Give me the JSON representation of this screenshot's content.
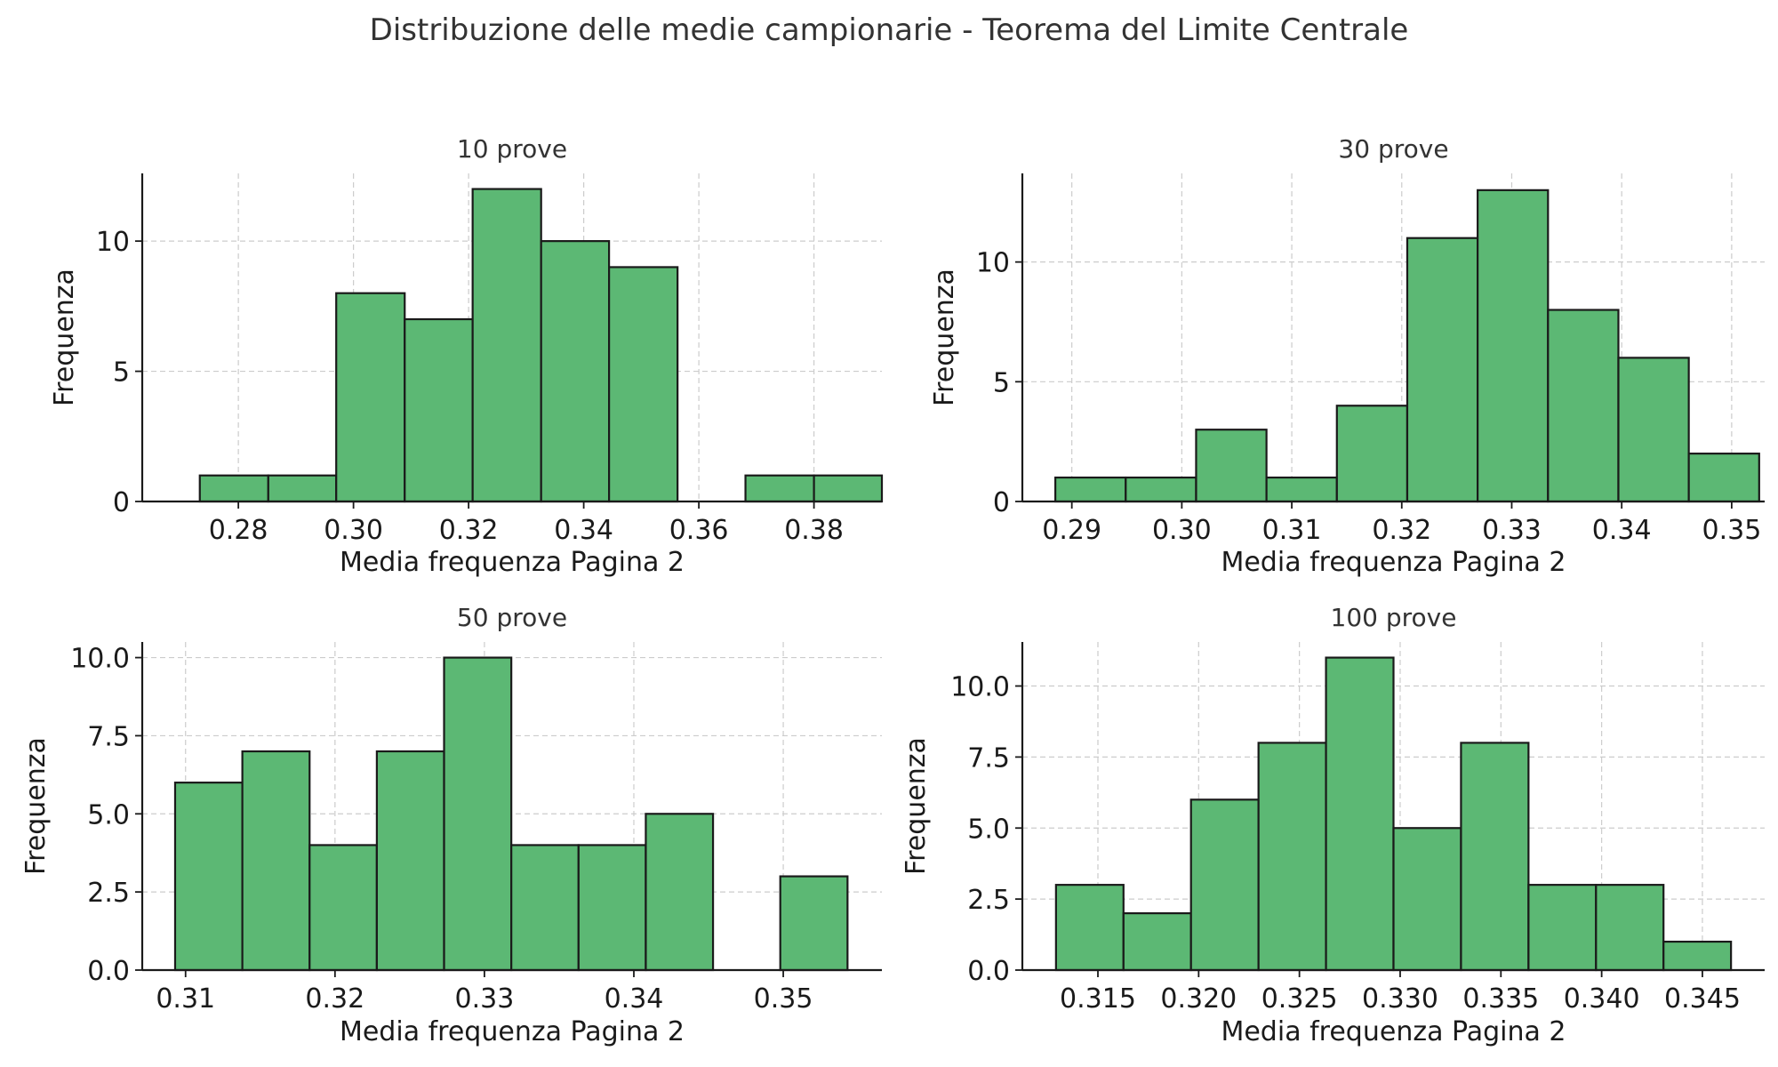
{
  "title": "Distribuzione delle medie campionarie - Teorema del Limite Centrale",
  "colors": {
    "bar_fill": "#5cb874",
    "bar_edge": "#1a1a1a",
    "grid": "#cccccc"
  },
  "chart_data": [
    {
      "type": "bar",
      "title": "10 prove",
      "xlabel": "Media frequenza Pagina 2",
      "ylabel": "Frequenza",
      "grid": true,
      "bin_edges": [
        0.2733,
        0.2852,
        0.297,
        0.3089,
        0.3207,
        0.3326,
        0.3444,
        0.3563,
        0.3681,
        0.38,
        0.3918
      ],
      "values": [
        1,
        1,
        8,
        7,
        12,
        10,
        9,
        0,
        1,
        1
      ],
      "xlim": [
        0.2633,
        0.3918
      ],
      "ylim": [
        0,
        12.6
      ],
      "xticks": [
        0.28,
        0.3,
        0.32,
        0.34,
        0.36,
        0.38
      ],
      "xtick_labels": [
        "0.28",
        "0.30",
        "0.32",
        "0.34",
        "0.36",
        "0.38"
      ],
      "yticks": [
        0,
        5,
        10
      ],
      "ytick_labels": [
        "0",
        "5",
        "10"
      ]
    },
    {
      "type": "bar",
      "title": "30 prove",
      "xlabel": "Media frequenza Pagina 2",
      "ylabel": "Frequenza",
      "grid": true,
      "bin_edges": [
        0.2885,
        0.2949,
        0.3013,
        0.3077,
        0.3141,
        0.3205,
        0.3269,
        0.3333,
        0.3397,
        0.3461,
        0.3525
      ],
      "values": [
        1,
        1,
        3,
        1,
        4,
        11,
        13,
        8,
        6,
        2
      ],
      "xlim": [
        0.2855,
        0.353
      ],
      "ylim": [
        0,
        13.7
      ],
      "xticks": [
        0.29,
        0.3,
        0.31,
        0.32,
        0.33,
        0.34,
        0.35
      ],
      "xtick_labels": [
        "0.29",
        "0.30",
        "0.31",
        "0.32",
        "0.33",
        "0.34",
        "0.35"
      ],
      "yticks": [
        0,
        5,
        10
      ],
      "ytick_labels": [
        "0",
        "5",
        "10"
      ]
    },
    {
      "type": "bar",
      "title": "50 prove",
      "xlabel": "Media frequenza Pagina 2",
      "ylabel": "Frequenza",
      "grid": true,
      "bin_edges": [
        0.3093,
        0.3138,
        0.3183,
        0.3228,
        0.3273,
        0.3318,
        0.3363,
        0.3408,
        0.3453,
        0.3498,
        0.3543
      ],
      "values": [
        6,
        7,
        4,
        7,
        10,
        4,
        4,
        5,
        0,
        3
      ],
      "xlim": [
        0.3071,
        0.3566
      ],
      "ylim": [
        0,
        10.5
      ],
      "xticks": [
        0.31,
        0.32,
        0.33,
        0.34,
        0.35
      ],
      "xtick_labels": [
        "0.31",
        "0.32",
        "0.33",
        "0.34",
        "0.35"
      ],
      "yticks": [
        0.0,
        2.5,
        5.0,
        7.5,
        10.0
      ],
      "ytick_labels": [
        "0.0",
        "2.5",
        "5.0",
        "7.5",
        "10.0"
      ]
    },
    {
      "type": "bar",
      "title": "100 prove",
      "xlabel": "Media frequenza Pagina 2",
      "ylabel": "Frequenza",
      "grid": true,
      "bin_edges": [
        0.31292,
        0.31627,
        0.31962,
        0.32297,
        0.32632,
        0.32967,
        0.33302,
        0.33637,
        0.33972,
        0.34307,
        0.34642
      ],
      "values": [
        3,
        2,
        6,
        8,
        11,
        5,
        8,
        3,
        3,
        1
      ],
      "xlim": [
        0.31125,
        0.34809
      ],
      "ylim": [
        0,
        11.55
      ],
      "xticks": [
        0.315,
        0.32,
        0.325,
        0.33,
        0.335,
        0.34,
        0.345
      ],
      "xtick_labels": [
        "0.315",
        "0.320",
        "0.325",
        "0.330",
        "0.335",
        "0.340",
        "0.345"
      ],
      "yticks": [
        0.0,
        2.5,
        5.0,
        7.5,
        10.0
      ],
      "ytick_labels": [
        "0.0",
        "2.5",
        "5.0",
        "7.5",
        "10.0"
      ]
    }
  ]
}
